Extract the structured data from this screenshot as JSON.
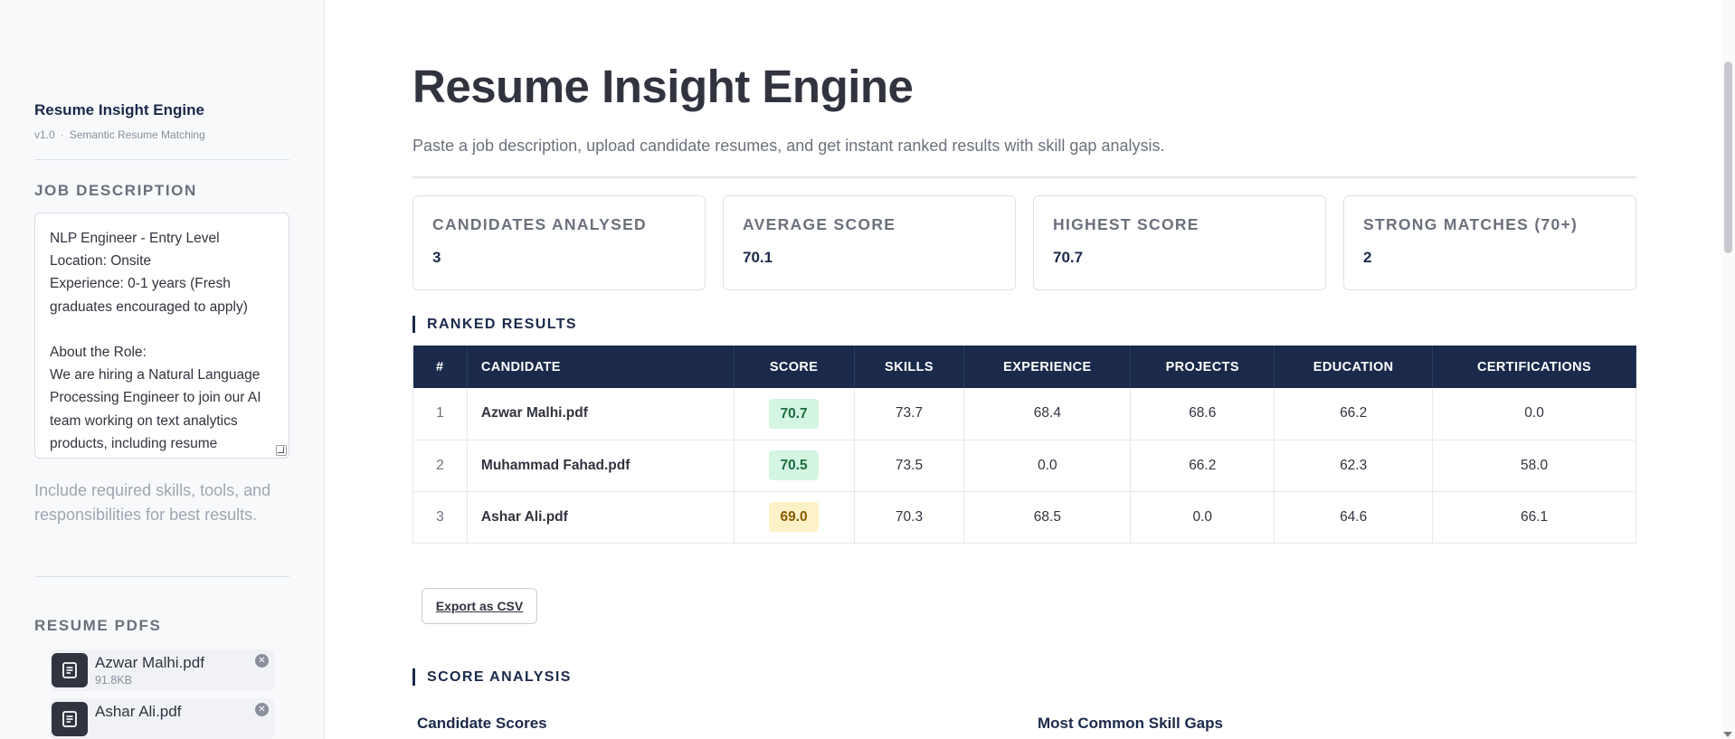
{
  "sidebar": {
    "app_title": "Resume Insight Engine",
    "version": "v1.0",
    "separator": "·",
    "tagline": "Semantic Resume Matching",
    "jd_heading": "JOB DESCRIPTION",
    "jd_text": "NLP Engineer - Entry Level\nLocation: Onsite\nExperience: 0-1 years (Fresh graduates encouraged to apply)\n\nAbout the Role:\nWe are hiring a Natural Language Processing Engineer to join our AI team working on text analytics products, including resume",
    "jd_help": "Include required skills, tools, and responsibilities for best results.",
    "resume_heading": "RESUME PDFS",
    "files": [
      {
        "name": "Azwar Malhi.pdf",
        "size": "91.8KB"
      },
      {
        "name": "Ashar Ali.pdf",
        "size": ""
      }
    ]
  },
  "main": {
    "title": "Resume Insight Engine",
    "description": "Paste a job description, upload candidate resumes, and get instant ranked results with skill gap analysis.",
    "metrics": [
      {
        "label": "CANDIDATES ANALYSED",
        "value": "3"
      },
      {
        "label": "AVERAGE SCORE",
        "value": "70.1"
      },
      {
        "label": "HIGHEST SCORE",
        "value": "70.7"
      },
      {
        "label": "STRONG MATCHES (70+)",
        "value": "2"
      }
    ],
    "ranked_heading": "RANKED RESULTS",
    "columns": [
      "#",
      "CANDIDATE",
      "SCORE",
      "SKILLS",
      "EXPERIENCE",
      "PROJECTS",
      "EDUCATION",
      "CERTIFICATIONS"
    ],
    "rows": [
      {
        "rank": "1",
        "candidate": "Azwar Malhi.pdf",
        "score": "70.7",
        "score_level": "green",
        "skills": "73.7",
        "experience": "68.4",
        "projects": "68.6",
        "education": "66.2",
        "certifications": "0.0"
      },
      {
        "rank": "2",
        "candidate": "Muhammad Fahad.pdf",
        "score": "70.5",
        "score_level": "green",
        "skills": "73.5",
        "experience": "0.0",
        "projects": "66.2",
        "education": "62.3",
        "certifications": "58.0"
      },
      {
        "rank": "3",
        "candidate": "Ashar Ali.pdf",
        "score": "69.0",
        "score_level": "amber",
        "skills": "70.3",
        "experience": "68.5",
        "projects": "0.0",
        "education": "64.6",
        "certifications": "66.1"
      }
    ],
    "export_label": "Export as CSV",
    "analysis_heading": "SCORE ANALYSIS",
    "candidate_scores_heading": "Candidate Scores",
    "skill_gaps_heading": "Most Common Skill Gaps"
  },
  "colors": {
    "navy": "#1b2a4a",
    "score_green_bg": "#d4f5e1",
    "score_amber_bg": "#fdf2c7"
  },
  "icons": {
    "file": "document-icon",
    "remove": "close-circle-icon"
  }
}
